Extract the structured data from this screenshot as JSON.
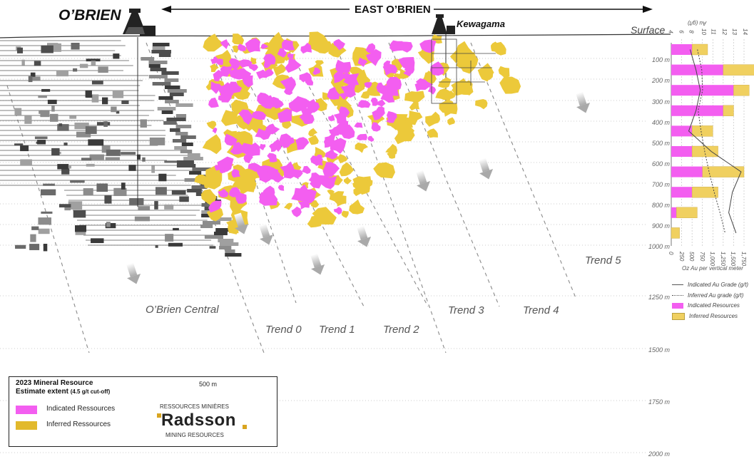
{
  "header": {
    "obrien_title": "O’BRIEN",
    "east_title": "EAST O’BRIEN",
    "kewagama_label": "Kewagama",
    "surface_label": "Surface"
  },
  "trends": {
    "central": "O’Brien Central",
    "t0": "Trend 0",
    "t1": "Trend 1",
    "t2": "Trend 2",
    "t3": "Trend 3",
    "t4": "Trend 4",
    "t5": "Trend 5"
  },
  "depth_labels": [
    "100 m",
    "200 m",
    "300 m",
    "400 m",
    "500 m",
    "600 m",
    "700 m",
    "800 m",
    "900 m",
    "1000 m",
    "1250 m",
    "1500 m",
    "1750 m",
    "2000 m"
  ],
  "legend": {
    "title_line1": "2023 Mineral Resource",
    "title_line2": "Estimate extent",
    "cutoff": "(4.5  g/t cut-off)",
    "indicated": "Indicated Ressources",
    "inferred": "Inferred Ressources",
    "scale": "500 m",
    "logo_top": "RESSOURCES MINIÈRES",
    "logo_name": "Radsson",
    "logo_bottom": "MINING RESOURCES"
  },
  "side_chart": {
    "grade_axis_title": "Au (g/t)",
    "grade_ticks": [
      "4",
      "6",
      "8",
      "10",
      "11",
      "12",
      "13",
      "14"
    ],
    "oz_axis_title": "Oz Au per vertical meter",
    "oz_ticks": [
      "0",
      "250",
      "500",
      "750",
      "1,000",
      "1,250",
      "1,500",
      "1,750"
    ],
    "legend_indicated_grade": "Indicated Au Grade (g/t)",
    "legend_inferred_grade": "Inferred Au grade (g/t)",
    "legend_indicated_res": "Indicated Resources",
    "legend_inferred_res": "Inferred Resources"
  },
  "chart_data": {
    "type": "bar",
    "categories": [
      "100 m",
      "200 m",
      "300 m",
      "400 m",
      "500 m",
      "600 m",
      "700 m",
      "800 m",
      "900 m",
      "1000 m"
    ],
    "series": [
      {
        "name": "Indicated Resources",
        "values": [
          500,
          1250,
          1500,
          1250,
          500,
          500,
          750,
          500,
          125,
          0
        ]
      },
      {
        "name": "Inferred Resources",
        "values": [
          375,
          750,
          375,
          250,
          500,
          625,
          1000,
          625,
          500,
          200
        ]
      },
      {
        "name": "Indicated Au Grade (g/t)",
        "values": [
          6.6,
          7.4,
          8.0,
          7.4,
          6.4,
          9.5,
          13.6,
          12.4,
          11.9,
          12.9
        ]
      },
      {
        "name": "Inferred Au grade (g/t)",
        "values": [
          7.6,
          8.2,
          8.3,
          7.7,
          8.1,
          8.6,
          9.2,
          9.9,
          10.7,
          11.4
        ]
      }
    ],
    "xlim_oz": [
      0,
      1750
    ],
    "xlim_grade": [
      4,
      14
    ],
    "colors": {
      "indicated": "#f35ef0",
      "inferred": "#f0d060"
    }
  },
  "colors": {
    "indicated": "#f35ef0",
    "inferred": "#ecc93a",
    "dashed_line": "#8a8a8a",
    "arrow": "#c8c8c8"
  }
}
